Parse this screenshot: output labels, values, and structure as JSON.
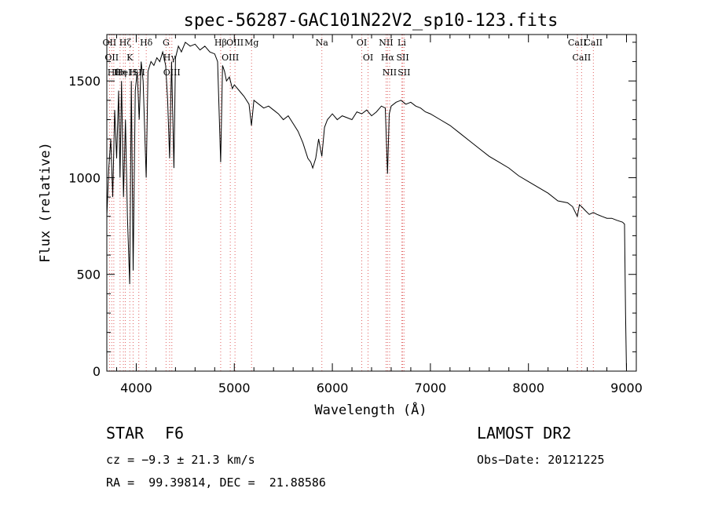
{
  "chart_data": {
    "type": "line",
    "title": "spec-56287-GAC101N22V2_sp10-123.fits",
    "xlabel": "Wavelength (Å)",
    "ylabel": "Flux (relative)",
    "xlim": [
      3700,
      9100
    ],
    "ylim": [
      0,
      1740
    ],
    "x_ticks": [
      4000,
      5000,
      6000,
      7000,
      8000,
      9000
    ],
    "y_ticks": [
      0,
      500,
      1000,
      1500
    ],
    "grid": false,
    "series": [
      {
        "x": [
          3700,
          3720,
          3740,
          3760,
          3780,
          3800,
          3820,
          3835,
          3850,
          3870,
          3890,
          3910,
          3933,
          3950,
          3968,
          3990,
          4010,
          4030,
          4050,
          4070,
          4101,
          4120,
          4150,
          4180,
          4210,
          4240,
          4270,
          4300,
          4320,
          4340,
          4360,
          4384,
          4400,
          4430,
          4460,
          4500,
          4550,
          4600,
          4650,
          4700,
          4750,
          4800,
          4830,
          4861,
          4880,
          4900,
          4920,
          4950,
          4980,
          5000,
          5050,
          5100,
          5150,
          5175,
          5200,
          5250,
          5300,
          5350,
          5400,
          5450,
          5500,
          5550,
          5600,
          5650,
          5700,
          5750,
          5780,
          5800,
          5830,
          5860,
          5893,
          5920,
          5950,
          6000,
          6050,
          6100,
          6150,
          6200,
          6250,
          6300,
          6350,
          6400,
          6450,
          6500,
          6540,
          6563,
          6580,
          6600,
          6650,
          6700,
          6750,
          6800,
          6850,
          6900,
          6950,
          7000,
          7100,
          7200,
          7300,
          7400,
          7500,
          7600,
          7700,
          7800,
          7900,
          8000,
          8100,
          8200,
          8300,
          8400,
          8450,
          8498,
          8520,
          8542,
          8580,
          8620,
          8662,
          8700,
          8750,
          8800,
          8850,
          8900,
          8960,
          8980,
          8990,
          9000
        ],
        "y": [
          800,
          1050,
          1200,
          900,
          1350,
          1100,
          1450,
          1000,
          1500,
          900,
          1300,
          800,
          450,
          1500,
          520,
          1450,
          1550,
          1300,
          1600,
          1500,
          1000,
          1550,
          1600,
          1580,
          1620,
          1600,
          1650,
          1580,
          1400,
          1100,
          1600,
          1050,
          1620,
          1680,
          1650,
          1700,
          1680,
          1690,
          1660,
          1680,
          1650,
          1640,
          1600,
          1080,
          1580,
          1550,
          1500,
          1520,
          1460,
          1480,
          1450,
          1420,
          1380,
          1270,
          1400,
          1380,
          1360,
          1370,
          1350,
          1330,
          1300,
          1320,
          1280,
          1240,
          1180,
          1100,
          1080,
          1050,
          1100,
          1200,
          1110,
          1260,
          1300,
          1330,
          1300,
          1320,
          1310,
          1300,
          1340,
          1330,
          1350,
          1320,
          1340,
          1370,
          1360,
          1020,
          1330,
          1370,
          1390,
          1400,
          1380,
          1390,
          1370,
          1360,
          1340,
          1330,
          1300,
          1270,
          1230,
          1190,
          1150,
          1110,
          1080,
          1050,
          1010,
          980,
          950,
          920,
          880,
          870,
          850,
          800,
          860,
          850,
          830,
          810,
          820,
          810,
          800,
          790,
          790,
          780,
          770,
          760,
          300,
          0
        ]
      }
    ],
    "lines": [
      {
        "x": 3727,
        "label": "OII"
      },
      {
        "x": 3750,
        "label": "OII"
      },
      {
        "x": 3771,
        "label": "Hθ"
      },
      {
        "x": 3835,
        "label": "Hη"
      },
      {
        "x": 3869,
        "label": "HeI"
      },
      {
        "x": 3889,
        "label": "Hζ"
      },
      {
        "x": 3934,
        "label": "K"
      },
      {
        "x": 3968,
        "label": "H"
      },
      {
        "x": 4026,
        "label": "SII"
      },
      {
        "x": 4102,
        "label": "Hδ"
      },
      {
        "x": 4304,
        "label": "G"
      },
      {
        "x": 4340,
        "label": "Hγ"
      },
      {
        "x": 4363,
        "label": "OIII"
      },
      {
        "x": 4861,
        "label": "Hβ"
      },
      {
        "x": 4959,
        "label": "OIII"
      },
      {
        "x": 5007,
        "label": "OIII"
      },
      {
        "x": 5176,
        "label": "Mg"
      },
      {
        "x": 5893,
        "label": "Na"
      },
      {
        "x": 6300,
        "label": "OI"
      },
      {
        "x": 6364,
        "label": "OI"
      },
      {
        "x": 6548,
        "label": "NII"
      },
      {
        "x": 6563,
        "label": "Hα"
      },
      {
        "x": 6584,
        "label": "NII"
      },
      {
        "x": 6708,
        "label": "Li"
      },
      {
        "x": 6717,
        "label": "SII"
      },
      {
        "x": 6731,
        "label": "SII"
      },
      {
        "x": 8498,
        "label": "CaII"
      },
      {
        "x": 8542,
        "label": "CaII"
      },
      {
        "x": 8662,
        "label": "CaII"
      }
    ]
  },
  "info": {
    "class": "STAR",
    "subclass": "F6",
    "survey": "LAMOST DR2",
    "cz": "cz = −9.3 ± 21.3 km/s",
    "obs_date": "Obs−Date: 20121225",
    "radec": "RA =  99.39814, DEC =  21.88586"
  }
}
